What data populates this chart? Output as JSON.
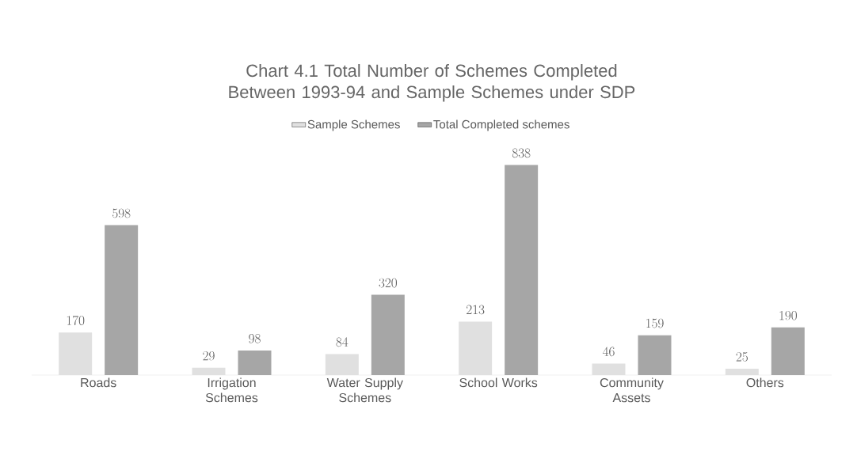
{
  "chart_data": {
    "type": "bar",
    "title": "Chart 4.1 Total Number of Schemes Completed Between 1993-94 and Sample Schemes under SDP",
    "categories": [
      "Roads",
      "Irrigation Schemes",
      "Water Supply Schemes",
      "School Works",
      "Community Assets",
      "Others"
    ],
    "series": [
      {
        "name": "Sample Schemes",
        "color": "#e0e0e0",
        "values": [
          170,
          29,
          84,
          213,
          46,
          25
        ]
      },
      {
        "name": "Total Completed schemes",
        "color": "#a6a6a6",
        "values": [
          598,
          98,
          320,
          838,
          159,
          190
        ]
      }
    ],
    "data_labels": true,
    "legend": "top"
  }
}
